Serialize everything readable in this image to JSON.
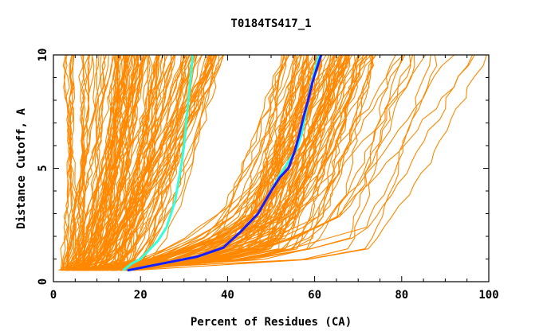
{
  "chart_data": {
    "type": "line",
    "title": "T0184TS417_1",
    "xlabel": "Percent of Residues (CA)",
    "ylabel": "Distance Cutoff, A",
    "xlim": [
      0,
      100
    ],
    "ylim": [
      0,
      10
    ],
    "xticks": [
      "0",
      "20",
      "40",
      "60",
      "80",
      "100"
    ],
    "yticks": [
      "0",
      "5",
      "10"
    ],
    "grid": false,
    "legend": "none",
    "colors": {
      "background_models": "#ff8800",
      "highlight_a": "#33ffdd",
      "highlight_b": "#1a1aff",
      "frame": "#000000"
    },
    "background_curves": {
      "description_note": "",
      "groups": [
        {
          "kind": "steep-left",
          "x0_range": [
            1,
            8
          ],
          "x10_range": [
            2,
            22
          ]
        },
        {
          "kind": "left-cluster",
          "x0_range": [
            2,
            18
          ],
          "x10_range": [
            14,
            40
          ]
        },
        {
          "kind": "right-cluster",
          "x0_range": [
            2,
            18
          ],
          "x10_range": [
            52,
            75
          ]
        },
        {
          "kind": "far-right",
          "x0_range": [
            2,
            18
          ],
          "x10_range": [
            78,
            100
          ]
        }
      ]
    },
    "series": [
      {
        "color": "#33ffdd",
        "x": [
          16,
          18,
          20,
          22,
          24,
          26,
          27,
          28,
          28.5,
          29,
          29.5,
          30,
          30.5,
          31,
          31.5,
          32
        ],
        "y": [
          0.5,
          0.8,
          1.0,
          1.4,
          1.8,
          2.4,
          3.0,
          3.6,
          4.2,
          4.7,
          5.3,
          6.0,
          7.0,
          8.0,
          9.0,
          10.0
        ]
      },
      {
        "color": "#33ffdd",
        "x": [
          17,
          25,
          33,
          39,
          43,
          47,
          50,
          52,
          54,
          56,
          57,
          58,
          59,
          60,
          61
        ],
        "y": [
          0.5,
          0.8,
          1.1,
          1.5,
          2.2,
          3.0,
          4.0,
          4.7,
          5.3,
          5.9,
          6.5,
          7.5,
          8.5,
          9.3,
          10.0
        ]
      },
      {
        "color": "#1a1aff",
        "x": [
          17,
          25,
          33,
          39,
          43,
          47,
          50,
          52,
          54,
          55.5,
          56.5,
          57.5,
          58.5,
          59.5,
          60.5,
          61.5
        ],
        "y": [
          0.5,
          0.8,
          1.1,
          1.5,
          2.2,
          3.0,
          4.0,
          4.6,
          5.0,
          5.8,
          6.5,
          7.3,
          8.0,
          8.8,
          9.4,
          10.0
        ]
      }
    ]
  }
}
